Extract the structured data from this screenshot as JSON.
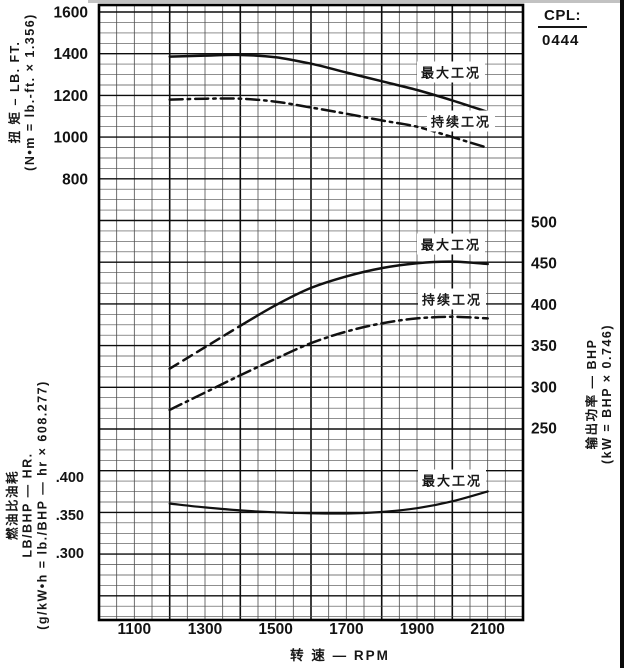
{
  "header": {
    "cpl_label": "CPL:",
    "cpl_value": "0444"
  },
  "chart_data": {
    "type": "line",
    "title": "",
    "x_label": "转 速 — RPM",
    "x_ticks": [
      1100,
      1300,
      1500,
      1700,
      1900,
      2100
    ],
    "x_range": [
      1000,
      2200
    ],
    "x_minor_step": 50,
    "x_major_step": 200,
    "grid": "both",
    "legend_position": "inline-annotations",
    "x": [
      1200,
      1300,
      1400,
      1500,
      1600,
      1700,
      1800,
      1900,
      2000,
      2100
    ],
    "axes": {
      "torque": {
        "label_line1": "扭 矩 – LB. FT.",
        "label_line2": "(N•m = lb.-ft. × 1.356)",
        "ticks": [
          1600,
          1400,
          1200,
          1000,
          800
        ],
        "unit": "LB.FT"
      },
      "power": {
        "label_line1": "输出功率 — BHP",
        "label_line2": "(kW = BHP × 0.746)",
        "ticks": [
          500,
          450,
          400,
          350,
          300,
          250
        ],
        "unit": "BHP"
      },
      "fuel": {
        "label_line1": "燃油比油耗",
        "label_line2": "LB/BHP — HR.",
        "label_line3": "(g/kW•h = lb./BHP — hr × 608.277)",
        "ticks": [
          ".400",
          ".350",
          ".300"
        ],
        "unit": "LB/BHP-HR"
      }
    },
    "series": [
      {
        "id": "torque-max",
        "label": "最大工况",
        "group": "torque",
        "style": "solid",
        "values": [
          1386,
          1391,
          1394,
          1383,
          1352,
          1310,
          1268,
          1226,
          1176,
          1121
        ]
      },
      {
        "id": "torque-cont",
        "label": "持续工况",
        "group": "torque",
        "style": "dashdot",
        "values": [
          1180,
          1184,
          1184,
          1170,
          1142,
          1112,
          1080,
          1050,
          1000,
          948
        ]
      },
      {
        "id": "power-max",
        "label": "最大工况",
        "group": "power",
        "style": "dashed_then_solid",
        "solid_from": 1400,
        "values": [
          322,
          348,
          374,
          399,
          420,
          434,
          444,
          450,
          452,
          449
        ]
      },
      {
        "id": "power-cont",
        "label": "持续工况",
        "group": "power",
        "style": "dashdot",
        "values": [
          272,
          293,
          314,
          334,
          353,
          367,
          377,
          383,
          385,
          383
        ]
      },
      {
        "id": "fuel-max",
        "label": "最大工况",
        "group": "fuel",
        "style": "solid",
        "values": [
          0.365,
          0.36,
          0.356,
          0.3535,
          0.3522,
          0.352,
          0.354,
          0.359,
          0.368,
          0.381
        ]
      }
    ],
    "annotations": [
      {
        "id": "torque-max-label",
        "text": "最大工况",
        "group": "torque",
        "rpm": 1995,
        "value": 1310
      },
      {
        "id": "torque-cont-label",
        "text": "持续工况",
        "group": "torque",
        "rpm": 2025,
        "value": 1075
      },
      {
        "id": "power-max-label",
        "text": "最大工况",
        "group": "power",
        "rpm": 1995,
        "value": 473
      },
      {
        "id": "power-cont-label",
        "text": "持续工况",
        "group": "power",
        "rpm": 2000,
        "value": 406
      },
      {
        "id": "fuel-max-label",
        "text": "最大工况",
        "group": "fuel",
        "rpm": 2000,
        "value": 0.3955
      }
    ]
  }
}
